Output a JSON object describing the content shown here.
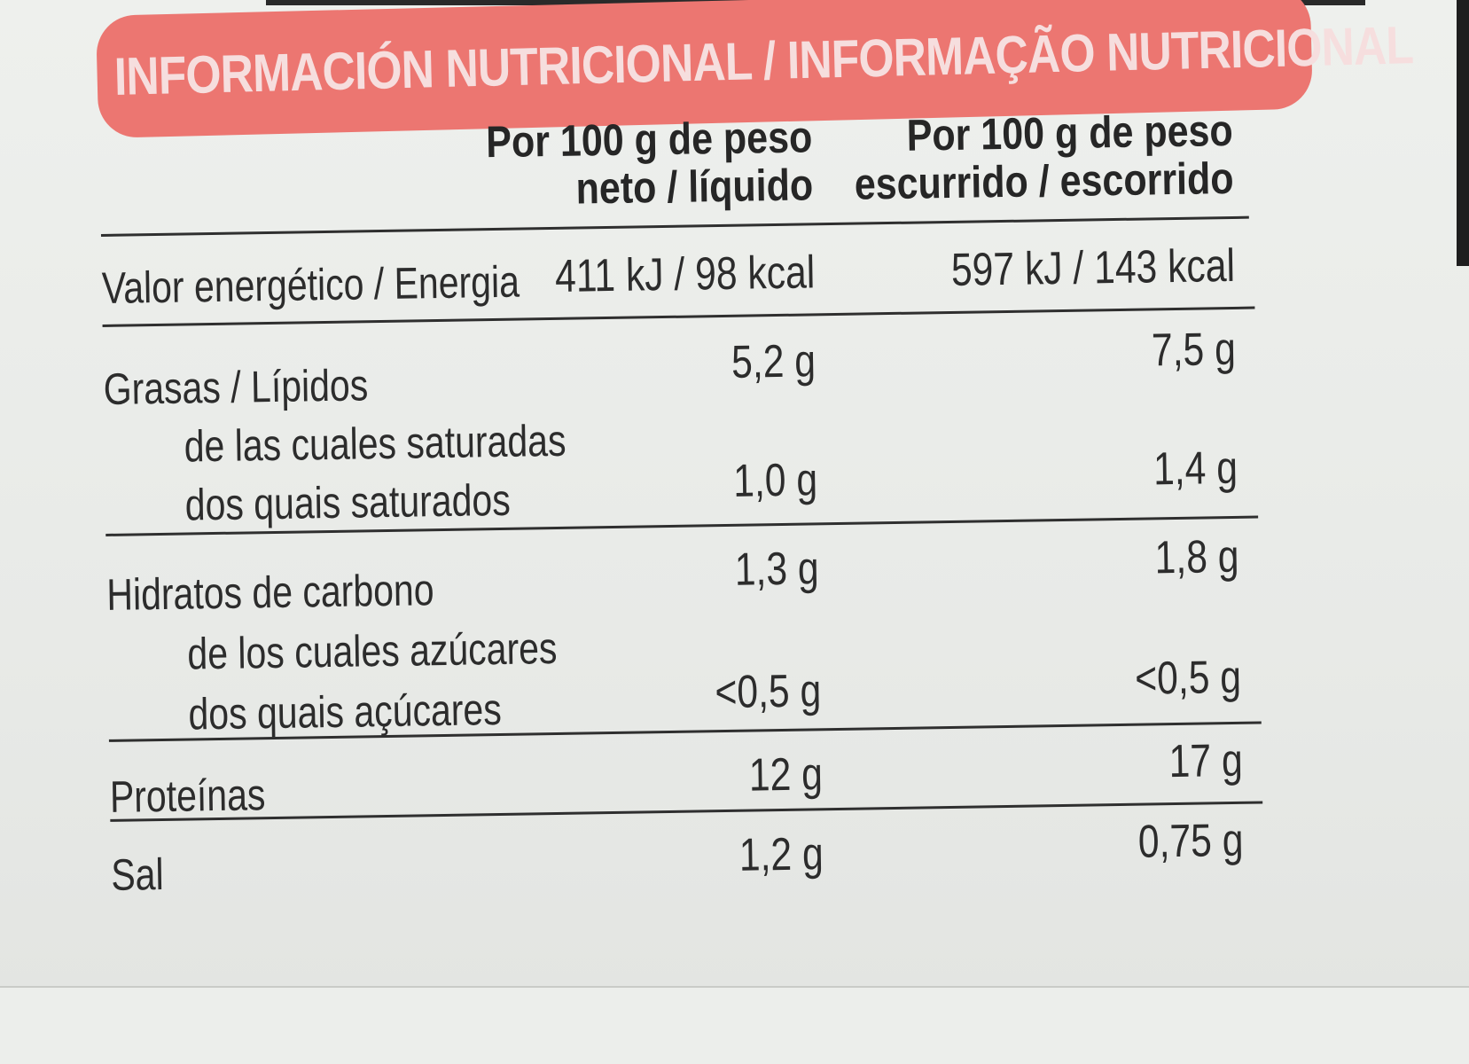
{
  "header": {
    "title": "INFORMACIÓN NUTRICIONAL / INFORMAÇÃO NUTRICIONAL"
  },
  "columns": {
    "col1_line1": "Por 100 g de peso",
    "col1_line2": "neto / líquido",
    "col2_line1": "Por 100 g de peso",
    "col2_line2": "escurrido / escorrido"
  },
  "rows": {
    "energy": {
      "label": "Valor energético / Energia",
      "per100_net": "411 kJ / 98 kcal",
      "per100_drained": "597 kJ / 143 kcal"
    },
    "fat": {
      "label": "Grasas / Lípidos",
      "per100_net": "5,2 g",
      "per100_drained": "7,5 g"
    },
    "saturated": {
      "label_line1": "de las cuales saturadas",
      "label_line2": "dos quais saturados",
      "per100_net": "1,0 g",
      "per100_drained": "1,4 g"
    },
    "carbs": {
      "label": "Hidratos de carbono",
      "per100_net": "1,3 g",
      "per100_drained": "1,8 g"
    },
    "sugars": {
      "label_line1": "de los cuales azúcares",
      "label_line2": "dos quais açúcares",
      "per100_net": "<0,5 g",
      "per100_drained": "<0,5 g"
    },
    "protein": {
      "label": "Proteínas",
      "per100_net": "12 g",
      "per100_drained": "17 g"
    },
    "salt": {
      "label": "Sal",
      "per100_net": "1,2 g",
      "per100_drained": "0,75 g"
    }
  },
  "colors": {
    "banner": "#ec7671",
    "banner_text": "#f6dede",
    "text": "#2c2c2c",
    "background": "#e9ebe8"
  }
}
